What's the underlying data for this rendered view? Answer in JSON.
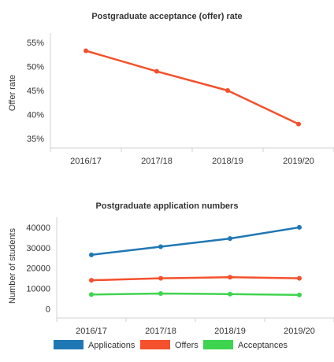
{
  "chart_data": [
    {
      "type": "line",
      "title": "Postgraduate acceptance (offer) rate",
      "ylabel": "Offer rate",
      "xlabel": "",
      "categories": [
        "2016/17",
        "2017/18",
        "2018/19",
        "2019/20"
      ],
      "series": [
        {
          "values": [
            0.533,
            0.49,
            0.45,
            0.38
          ],
          "color": "#f4512c"
        }
      ],
      "ylim": [
        0.33,
        0.57
      ],
      "yticks": [
        0.35,
        0.4,
        0.45,
        0.5,
        0.55
      ],
      "ytick_labels": [
        "35%",
        "40%",
        "45%",
        "50%",
        "55%"
      ],
      "grid": false,
      "legend": false
    },
    {
      "type": "line",
      "title": "Postgraduate application numbers",
      "ylabel": "Number of students",
      "xlabel": "",
      "categories": [
        "2016/17",
        "2017/18",
        "2018/19",
        "2019/20"
      ],
      "series": [
        {
          "name": "Applications",
          "values": [
            26500,
            30500,
            34500,
            40000
          ],
          "color": "#1f77b4"
        },
        {
          "name": "Offers",
          "values": [
            14000,
            15000,
            15500,
            15000
          ],
          "color": "#f4512c"
        },
        {
          "name": "Acceptances",
          "values": [
            7000,
            7500,
            7200,
            6800
          ],
          "color": "#3fd44f"
        }
      ],
      "ylim": [
        -4500,
        45000
      ],
      "yticks": [
        0,
        10000,
        20000,
        30000,
        40000
      ],
      "ytick_labels": [
        "0",
        "10000",
        "20000",
        "30000",
        "40000"
      ],
      "grid": false,
      "legend": "bottom"
    }
  ]
}
